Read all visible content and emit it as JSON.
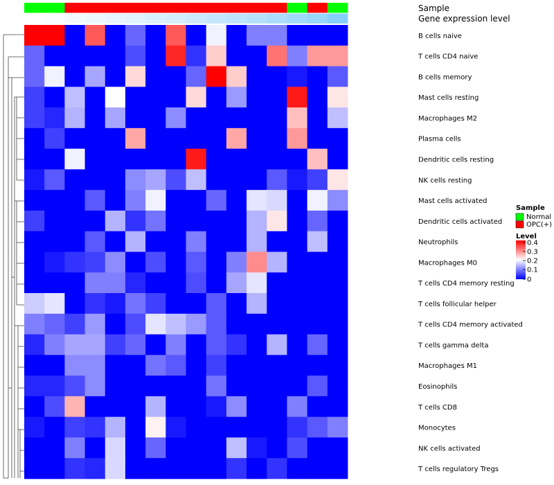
{
  "chart_data": {
    "type": "heatmap",
    "title": "",
    "annotation_labels": {
      "sample": "Sample",
      "gene_expression": "Gene expression level"
    },
    "rows": [
      "B cells naive",
      "T cells CD4 naive",
      "B cells memory",
      "Mast cells resting",
      "Macrophages M2",
      "Plasma cells",
      "Dendritic cells resting",
      "NK cells resting",
      "Mast cells activated",
      "Dendritic cells activated",
      "Neutrophils",
      "Macrophages M0",
      "T cells CD4 memory resting",
      "T cells follicular helper",
      "T cells CD4 memory activated",
      "T cells gamma delta",
      "Macrophages M1",
      "Eosinophils",
      "T cells CD8",
      "Monocytes",
      "NK cells activated",
      "T cells regulatory  Tregs"
    ],
    "sample_groups": [
      "Normal",
      "Normal",
      "OPC(+)",
      "OPC(+)",
      "OPC(+)",
      "OPC(+)",
      "OPC(+)",
      "OPC(+)",
      "OPC(+)",
      "OPC(+)",
      "OPC(+)",
      "OPC(+)",
      "OPC(+)",
      "Normal",
      "OPC(+)",
      "Normal"
    ],
    "gene_expression_levels": [
      0.0,
      0.05,
      0.1,
      0.15,
      0.2,
      0.25,
      0.3,
      0.35,
      0.42,
      0.48,
      0.55,
      0.62,
      0.7,
      0.78,
      0.86,
      1.0
    ],
    "values": [
      [
        0.4,
        0.4,
        0.0,
        0.33,
        0.0,
        0.08,
        0.0,
        0.33,
        0.0,
        0.19,
        0.0,
        0.1,
        0.1,
        0.0,
        0.0,
        0.0
      ],
      [
        0.08,
        0.0,
        0.0,
        0.0,
        0.0,
        0.06,
        0.0,
        0.37,
        0.04,
        0.24,
        0.0,
        0.0,
        0.31,
        0.1,
        0.28,
        0.28
      ],
      [
        0.08,
        0.19,
        0.0,
        0.13,
        0.0,
        0.23,
        0.0,
        0.0,
        0.08,
        0.4,
        0.24,
        0.0,
        0.0,
        0.02,
        0.0,
        0.07
      ],
      [
        0.05,
        0.0,
        0.15,
        0.0,
        0.2,
        0.0,
        0.0,
        0.0,
        0.23,
        0.0,
        0.12,
        0.0,
        0.0,
        0.38,
        0.0,
        0.22
      ],
      [
        0.05,
        0.03,
        0.14,
        0.0,
        0.13,
        0.0,
        0.0,
        0.11,
        0.0,
        0.0,
        0.0,
        0.0,
        0.0,
        0.25,
        0.0,
        0.15
      ],
      [
        0.0,
        0.05,
        0.0,
        0.0,
        0.0,
        0.27,
        0.0,
        0.0,
        0.0,
        0.0,
        0.27,
        0.0,
        0.0,
        0.28,
        0.0,
        0.0
      ],
      [
        0.0,
        0.0,
        0.19,
        0.0,
        0.0,
        0.0,
        0.0,
        0.0,
        0.38,
        0.0,
        0.0,
        0.0,
        0.0,
        0.0,
        0.25,
        0.0
      ],
      [
        0.02,
        0.07,
        0.0,
        0.0,
        0.0,
        0.11,
        0.13,
        0.06,
        0.15,
        0.0,
        0.0,
        0.0,
        0.07,
        0.02,
        0.05,
        0.22
      ],
      [
        0.0,
        0.0,
        0.0,
        0.07,
        0.0,
        0.1,
        0.19,
        0.0,
        0.0,
        0.08,
        0.0,
        0.18,
        0.17,
        0.0,
        0.19,
        0.11
      ],
      [
        0.05,
        0.0,
        0.0,
        0.0,
        0.14,
        0.04,
        0.09,
        0.0,
        0.0,
        0.0,
        0.0,
        0.14,
        0.22,
        0.0,
        0.08,
        0.0
      ],
      [
        0.0,
        0.0,
        0.0,
        0.07,
        0.0,
        0.14,
        0.0,
        0.0,
        0.1,
        0.0,
        0.0,
        0.14,
        0.0,
        0.0,
        0.15,
        0.0
      ],
      [
        0.0,
        0.02,
        0.04,
        0.05,
        0.11,
        0.0,
        0.06,
        0.0,
        0.07,
        0.0,
        0.1,
        0.29,
        0.14,
        0.0,
        0.0,
        0.0
      ],
      [
        0.0,
        0.0,
        0.0,
        0.1,
        0.1,
        0.03,
        0.0,
        0.0,
        0.06,
        0.0,
        0.13,
        0.18,
        0.0,
        0.0,
        0.0,
        0.0
      ],
      [
        0.16,
        0.18,
        0.0,
        0.04,
        0.02,
        0.09,
        0.05,
        0.0,
        0.0,
        0.07,
        0.0,
        0.14,
        0.0,
        0.0,
        0.0,
        0.0
      ],
      [
        0.1,
        0.08,
        0.05,
        0.12,
        0.0,
        0.06,
        0.18,
        0.15,
        0.12,
        0.07,
        0.0,
        0.0,
        0.0,
        0.0,
        0.0,
        0.0
      ],
      [
        0.03,
        0.1,
        0.13,
        0.13,
        0.05,
        0.08,
        0.0,
        0.1,
        0.0,
        0.07,
        0.04,
        0.0,
        0.14,
        0.0,
        0.08,
        0.0
      ],
      [
        0.0,
        0.0,
        0.11,
        0.11,
        0.0,
        0.0,
        0.09,
        0.07,
        0.0,
        0.05,
        0.0,
        0.0,
        0.0,
        0.0,
        0.0,
        0.0
      ],
      [
        0.03,
        0.03,
        0.06,
        0.11,
        0.0,
        0.0,
        0.0,
        0.0,
        0.0,
        0.09,
        0.0,
        0.0,
        0.0,
        0.0,
        0.07,
        0.0
      ],
      [
        0.0,
        0.06,
        0.26,
        0.0,
        0.0,
        0.0,
        0.14,
        0.0,
        0.0,
        0.02,
        0.11,
        0.0,
        0.0,
        0.1,
        0.0,
        0.0
      ],
      [
        0.02,
        0.0,
        0.05,
        0.04,
        0.14,
        0.0,
        0.21,
        0.02,
        0.0,
        0.0,
        0.0,
        0.0,
        0.0,
        0.04,
        0.07,
        0.1
      ],
      [
        0.0,
        0.0,
        0.1,
        0.0,
        0.17,
        0.0,
        0.08,
        0.0,
        0.0,
        0.0,
        0.15,
        0.02,
        0.0,
        0.06,
        0.0,
        0.0
      ],
      [
        0.0,
        0.0,
        0.04,
        0.03,
        0.17,
        0.0,
        0.0,
        0.0,
        0.0,
        0.0,
        0.04,
        0.0,
        0.04,
        0.0,
        0.0,
        0.0
      ]
    ],
    "color_scale": {
      "min": 0,
      "max": 0.4,
      "low": "#0000ff",
      "mid": "#ffffff",
      "high": "#ff0000"
    },
    "legend": {
      "sample_title": "Sample",
      "sample_entries": [
        {
          "label": "Normal",
          "color": "#00ff00"
        },
        {
          "label": "OPC(+)",
          "color": "#ff0000"
        }
      ],
      "level_title": "Level",
      "level_ticks": [
        "0.4",
        "0.3",
        "0.2",
        "0.1",
        "0"
      ],
      "placement": "right"
    },
    "gene_expression_colors": {
      "low": "#ffffff",
      "high": "#87cefa"
    }
  }
}
